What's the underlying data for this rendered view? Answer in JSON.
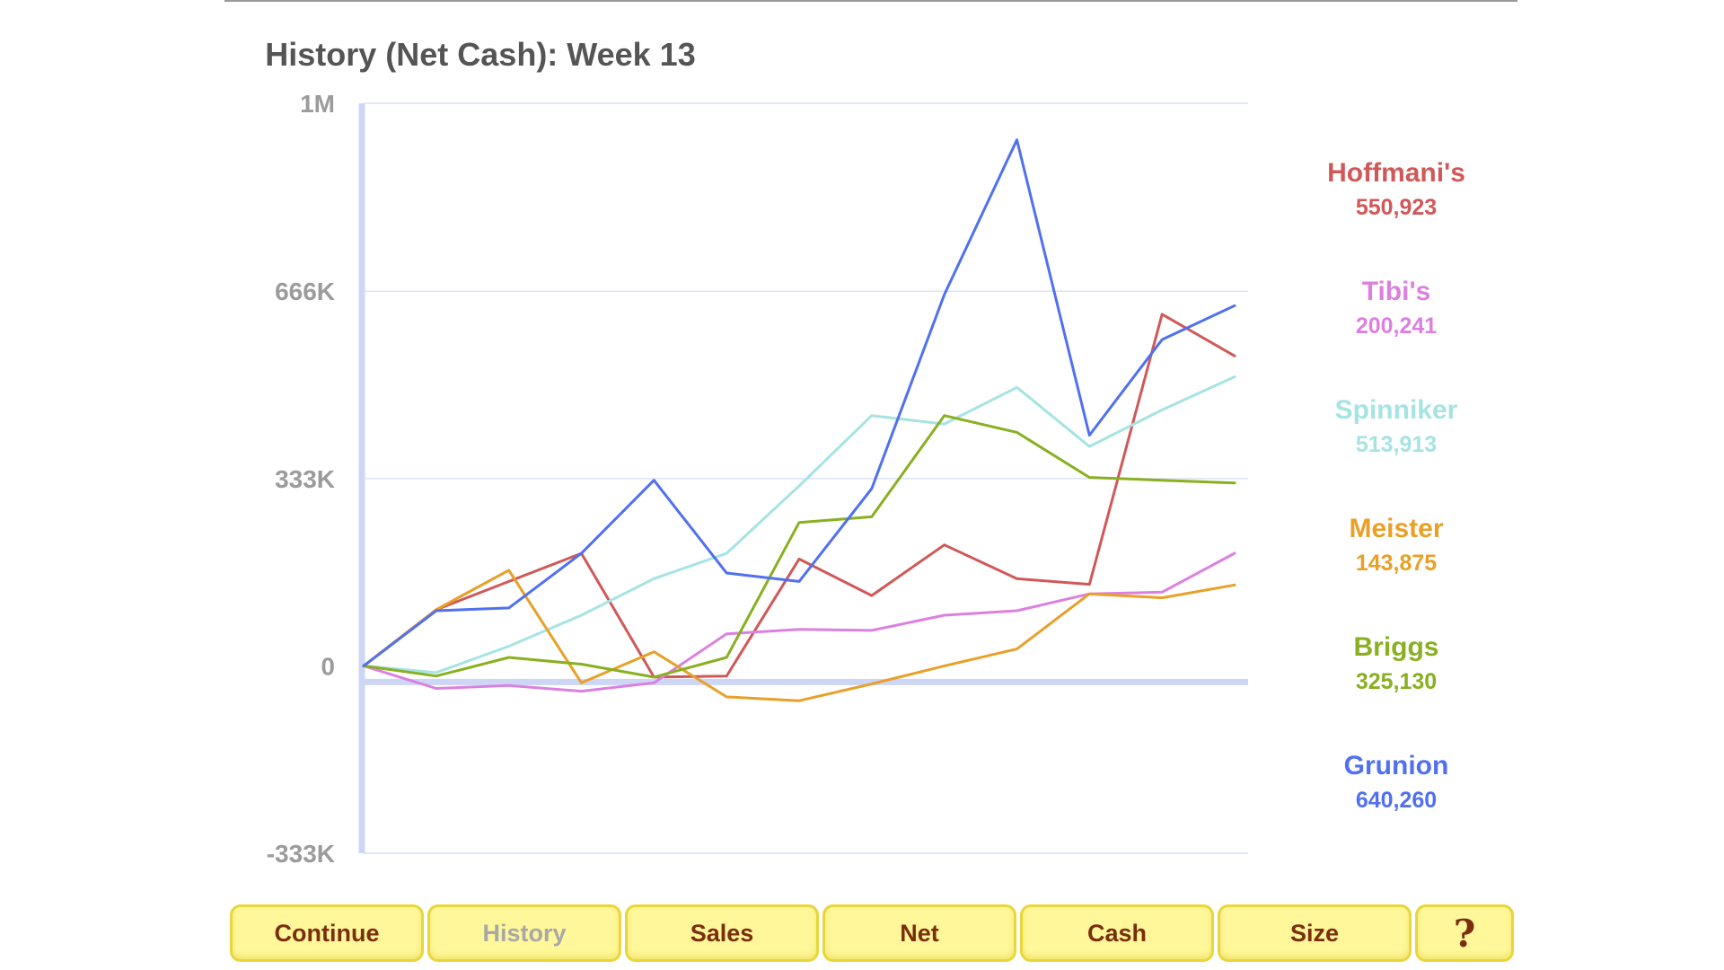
{
  "chart_data": {
    "type": "line",
    "title": "History (Net Cash):  Week 13",
    "xlabel": "",
    "ylabel": "",
    "x": [
      0,
      1,
      2,
      3,
      4,
      5,
      6,
      7,
      8,
      9,
      10,
      11,
      12
    ],
    "ylim": [
      -333000,
      1000000
    ],
    "yticks": [
      {
        "value": 1000000,
        "label": "1M"
      },
      {
        "value": 666000,
        "label": "666K"
      },
      {
        "value": 333000,
        "label": "333K"
      },
      {
        "value": 0,
        "label": "0"
      },
      {
        "value": -333000,
        "label": "-333K"
      }
    ],
    "grid": true,
    "legend_position": "right",
    "series": [
      {
        "name": "Hoffmani's",
        "display_value": "550,923",
        "color": "#d05858",
        "values": [
          0,
          100000,
          150000,
          200000,
          -20000,
          -18000,
          190000,
          125000,
          215000,
          155000,
          145000,
          625000,
          550923
        ]
      },
      {
        "name": "Tibi's",
        "display_value": "200,241",
        "color": "#dc80e0",
        "values": [
          0,
          -40000,
          -35000,
          -45000,
          -30000,
          57000,
          65000,
          63000,
          90000,
          98000,
          128000,
          131000,
          200241
        ]
      },
      {
        "name": "Spinniker",
        "display_value": "513,913",
        "color": "#a6e3e3",
        "values": [
          0,
          -12000,
          35000,
          90000,
          155000,
          200000,
          320000,
          445000,
          430000,
          495000,
          390000,
          455000,
          513913
        ]
      },
      {
        "name": "Meister",
        "display_value": "143,875",
        "color": "#e8a028",
        "values": [
          0,
          100000,
          170000,
          -30000,
          25000,
          -55000,
          -62000,
          -32000,
          0,
          30000,
          128000,
          121000,
          143875
        ]
      },
      {
        "name": "Briggs",
        "display_value": "325,130",
        "color": "#88b020",
        "values": [
          0,
          -18000,
          15000,
          3000,
          -20000,
          15000,
          255000,
          265000,
          445000,
          415000,
          335000,
          330000,
          325130
        ]
      },
      {
        "name": "Grunion",
        "display_value": "640,260",
        "color": "#5070f0",
        "values": [
          0,
          98000,
          103000,
          200000,
          330000,
          165000,
          150000,
          315000,
          660000,
          935000,
          410000,
          580000,
          640260
        ]
      }
    ]
  },
  "buttons": [
    {
      "label": "Continue",
      "state": "enabled"
    },
    {
      "label": "History",
      "state": "disabled"
    },
    {
      "label": "Sales",
      "state": "enabled"
    },
    {
      "label": "Net",
      "state": "enabled"
    },
    {
      "label": "Cash",
      "state": "enabled"
    },
    {
      "label": "Size",
      "state": "enabled"
    },
    {
      "label": "?",
      "state": "enabled"
    }
  ],
  "colors": {
    "button_bg": "#fff799",
    "button_border": "#e8d63a",
    "button_text": "#7a2e0e",
    "axis": "#cdd6f5",
    "grid": "#dde3f5",
    "tick_label": "#9b9b9b"
  }
}
